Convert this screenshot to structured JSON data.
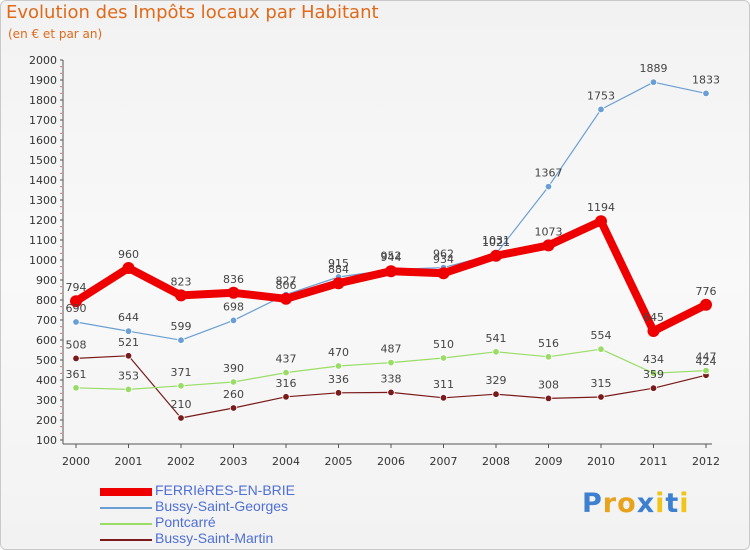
{
  "chart_data": {
    "type": "line",
    "title": "Evolution des Impôts locaux par Habitant",
    "subtitle": "(en € et par an)",
    "categories": [
      "2000",
      "2001",
      "2002",
      "2003",
      "2004",
      "2005",
      "2006",
      "2007",
      "2008",
      "2009",
      "2010",
      "2011",
      "2012"
    ],
    "ylim": [
      100,
      2000
    ],
    "yticks": [
      100,
      200,
      300,
      400,
      500,
      600,
      700,
      800,
      900,
      1000,
      1100,
      1200,
      1300,
      1400,
      1500,
      1600,
      1700,
      1800,
      1900,
      2000
    ],
    "grid": false,
    "legend_position": "bottom-left",
    "series": [
      {
        "name": "FERRIèRES-EN-BRIE",
        "color": "#ee0000",
        "values": [
          794,
          960,
          823,
          836,
          806,
          884,
          944,
          934,
          1021,
          1073,
          1194,
          645,
          776
        ],
        "labels": [
          "794",
          "960",
          "823",
          "836",
          "806",
          "884",
          "944",
          "934",
          "1021",
          "1073",
          "1194",
          "645",
          "776"
        ]
      },
      {
        "name": "Bussy-Saint-Georges",
        "color": "#6a9fd4",
        "values": [
          690,
          644,
          599,
          698,
          827,
          915,
          952,
          962,
          1031,
          1367,
          1753,
          1889,
          1833
        ],
        "labels": [
          "690",
          "644",
          "599",
          "698",
          "827",
          "915",
          "952",
          "962",
          "1031",
          "1367",
          "1753",
          "1889",
          "1833"
        ]
      },
      {
        "name": "Pontcarré",
        "color": "#99dd66",
        "values": [
          361,
          353,
          371,
          390,
          437,
          470,
          487,
          510,
          541,
          516,
          554,
          434,
          447
        ],
        "labels": [
          "361",
          "353",
          "371",
          "390",
          "437",
          "470",
          "487",
          "510",
          "541",
          "516",
          "554",
          "434",
          "447"
        ]
      },
      {
        "name": "Bussy-Saint-Martin",
        "color": "#7a1a1a",
        "values": [
          508,
          521,
          210,
          260,
          316,
          336,
          338,
          311,
          329,
          308,
          315,
          359,
          424
        ],
        "labels": [
          "508",
          "521",
          "210",
          "260",
          "316",
          "336",
          "338",
          "311",
          "329",
          "308",
          "315",
          "359",
          "424"
        ]
      }
    ]
  },
  "brand": {
    "letters": [
      "P",
      "r",
      "o",
      "x",
      "i",
      "t",
      "i"
    ],
    "colors": [
      "#3d7fd0",
      "#e8a21b",
      "#e8a21b",
      "#3d7fd0",
      "#f0c419",
      "#3d7fd0",
      "#f0c419"
    ]
  }
}
